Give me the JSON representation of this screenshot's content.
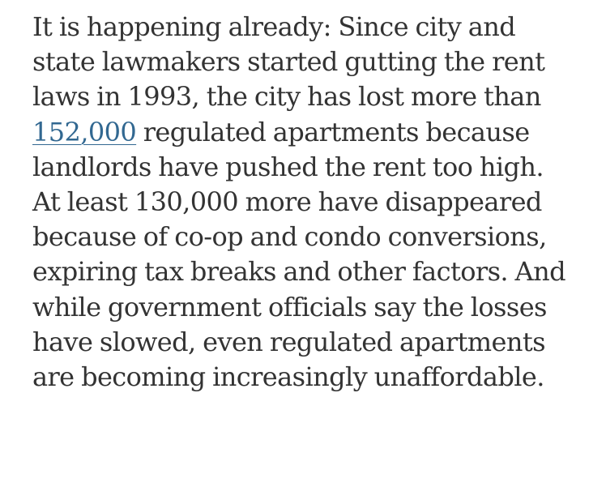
{
  "article": {
    "lines": [
      "It is happening already: Since city and",
      "state lawmakers started gutting the rent",
      "laws in 1993, the city has lost more than",
      {
        "link": "152,000",
        "rest": " regulated apartments because"
      },
      "landlords have pushed the rent too high.",
      "At least 130,000 more have disappeared",
      "because of co-op and condo conversions,",
      "expiring tax breaks and other factors. And",
      "while government officials say the losses",
      "have slowed, even regulated apartments",
      "are becoming increasingly unaffordable."
    ],
    "link_color": "#326891",
    "text_color": "#333333"
  }
}
